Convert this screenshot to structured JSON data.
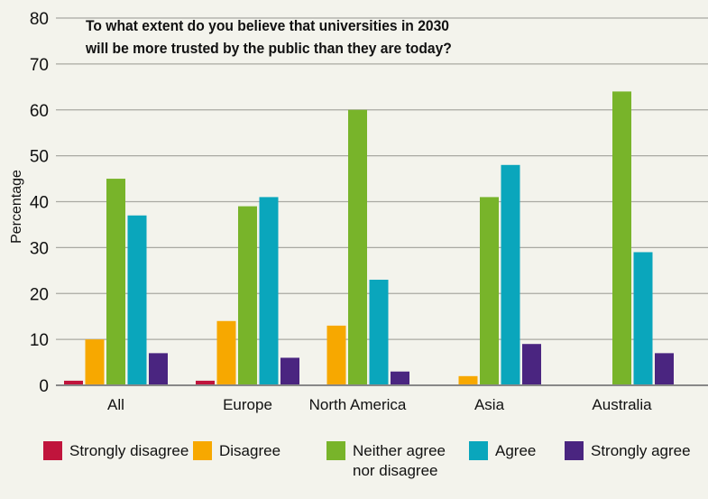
{
  "chart_data": {
    "type": "bar",
    "title": "To what extent do you believe that universities in 2030 will be more trusted by the public than they are today?",
    "title_lines": [
      "To what extent do you believe that universities in 2030",
      "will be more trusted by the public than they are today?"
    ],
    "xlabel": "",
    "ylabel": "Percentage",
    "ylim": [
      0,
      80
    ],
    "yticks": [
      0,
      10,
      20,
      30,
      40,
      50,
      60,
      70,
      80
    ],
    "grid": true,
    "legend_position": "bottom",
    "categories": [
      "All",
      "Europe",
      "North America",
      "Asia",
      "Australia"
    ],
    "series": [
      {
        "name": "Strongly disagree",
        "color": "#c0143c",
        "values": [
          1,
          1,
          0,
          0,
          0
        ]
      },
      {
        "name": "Disagree",
        "color": "#f7a800",
        "values": [
          10,
          14,
          13,
          2,
          0
        ]
      },
      {
        "name": "Neither agree nor disagree",
        "color": "#78b42a",
        "values": [
          45,
          39,
          60,
          41,
          64
        ]
      },
      {
        "name": "Agree",
        "color": "#0aa6bc",
        "values": [
          37,
          41,
          23,
          48,
          29
        ]
      },
      {
        "name": "Strongly agree",
        "color": "#4a2580",
        "values": [
          7,
          6,
          3,
          9,
          7
        ]
      }
    ]
  },
  "legend_labels": [
    "Strongly disagree",
    "Disagree",
    "Neither agree\nnor disagree",
    "Agree",
    "Strongly agree"
  ]
}
